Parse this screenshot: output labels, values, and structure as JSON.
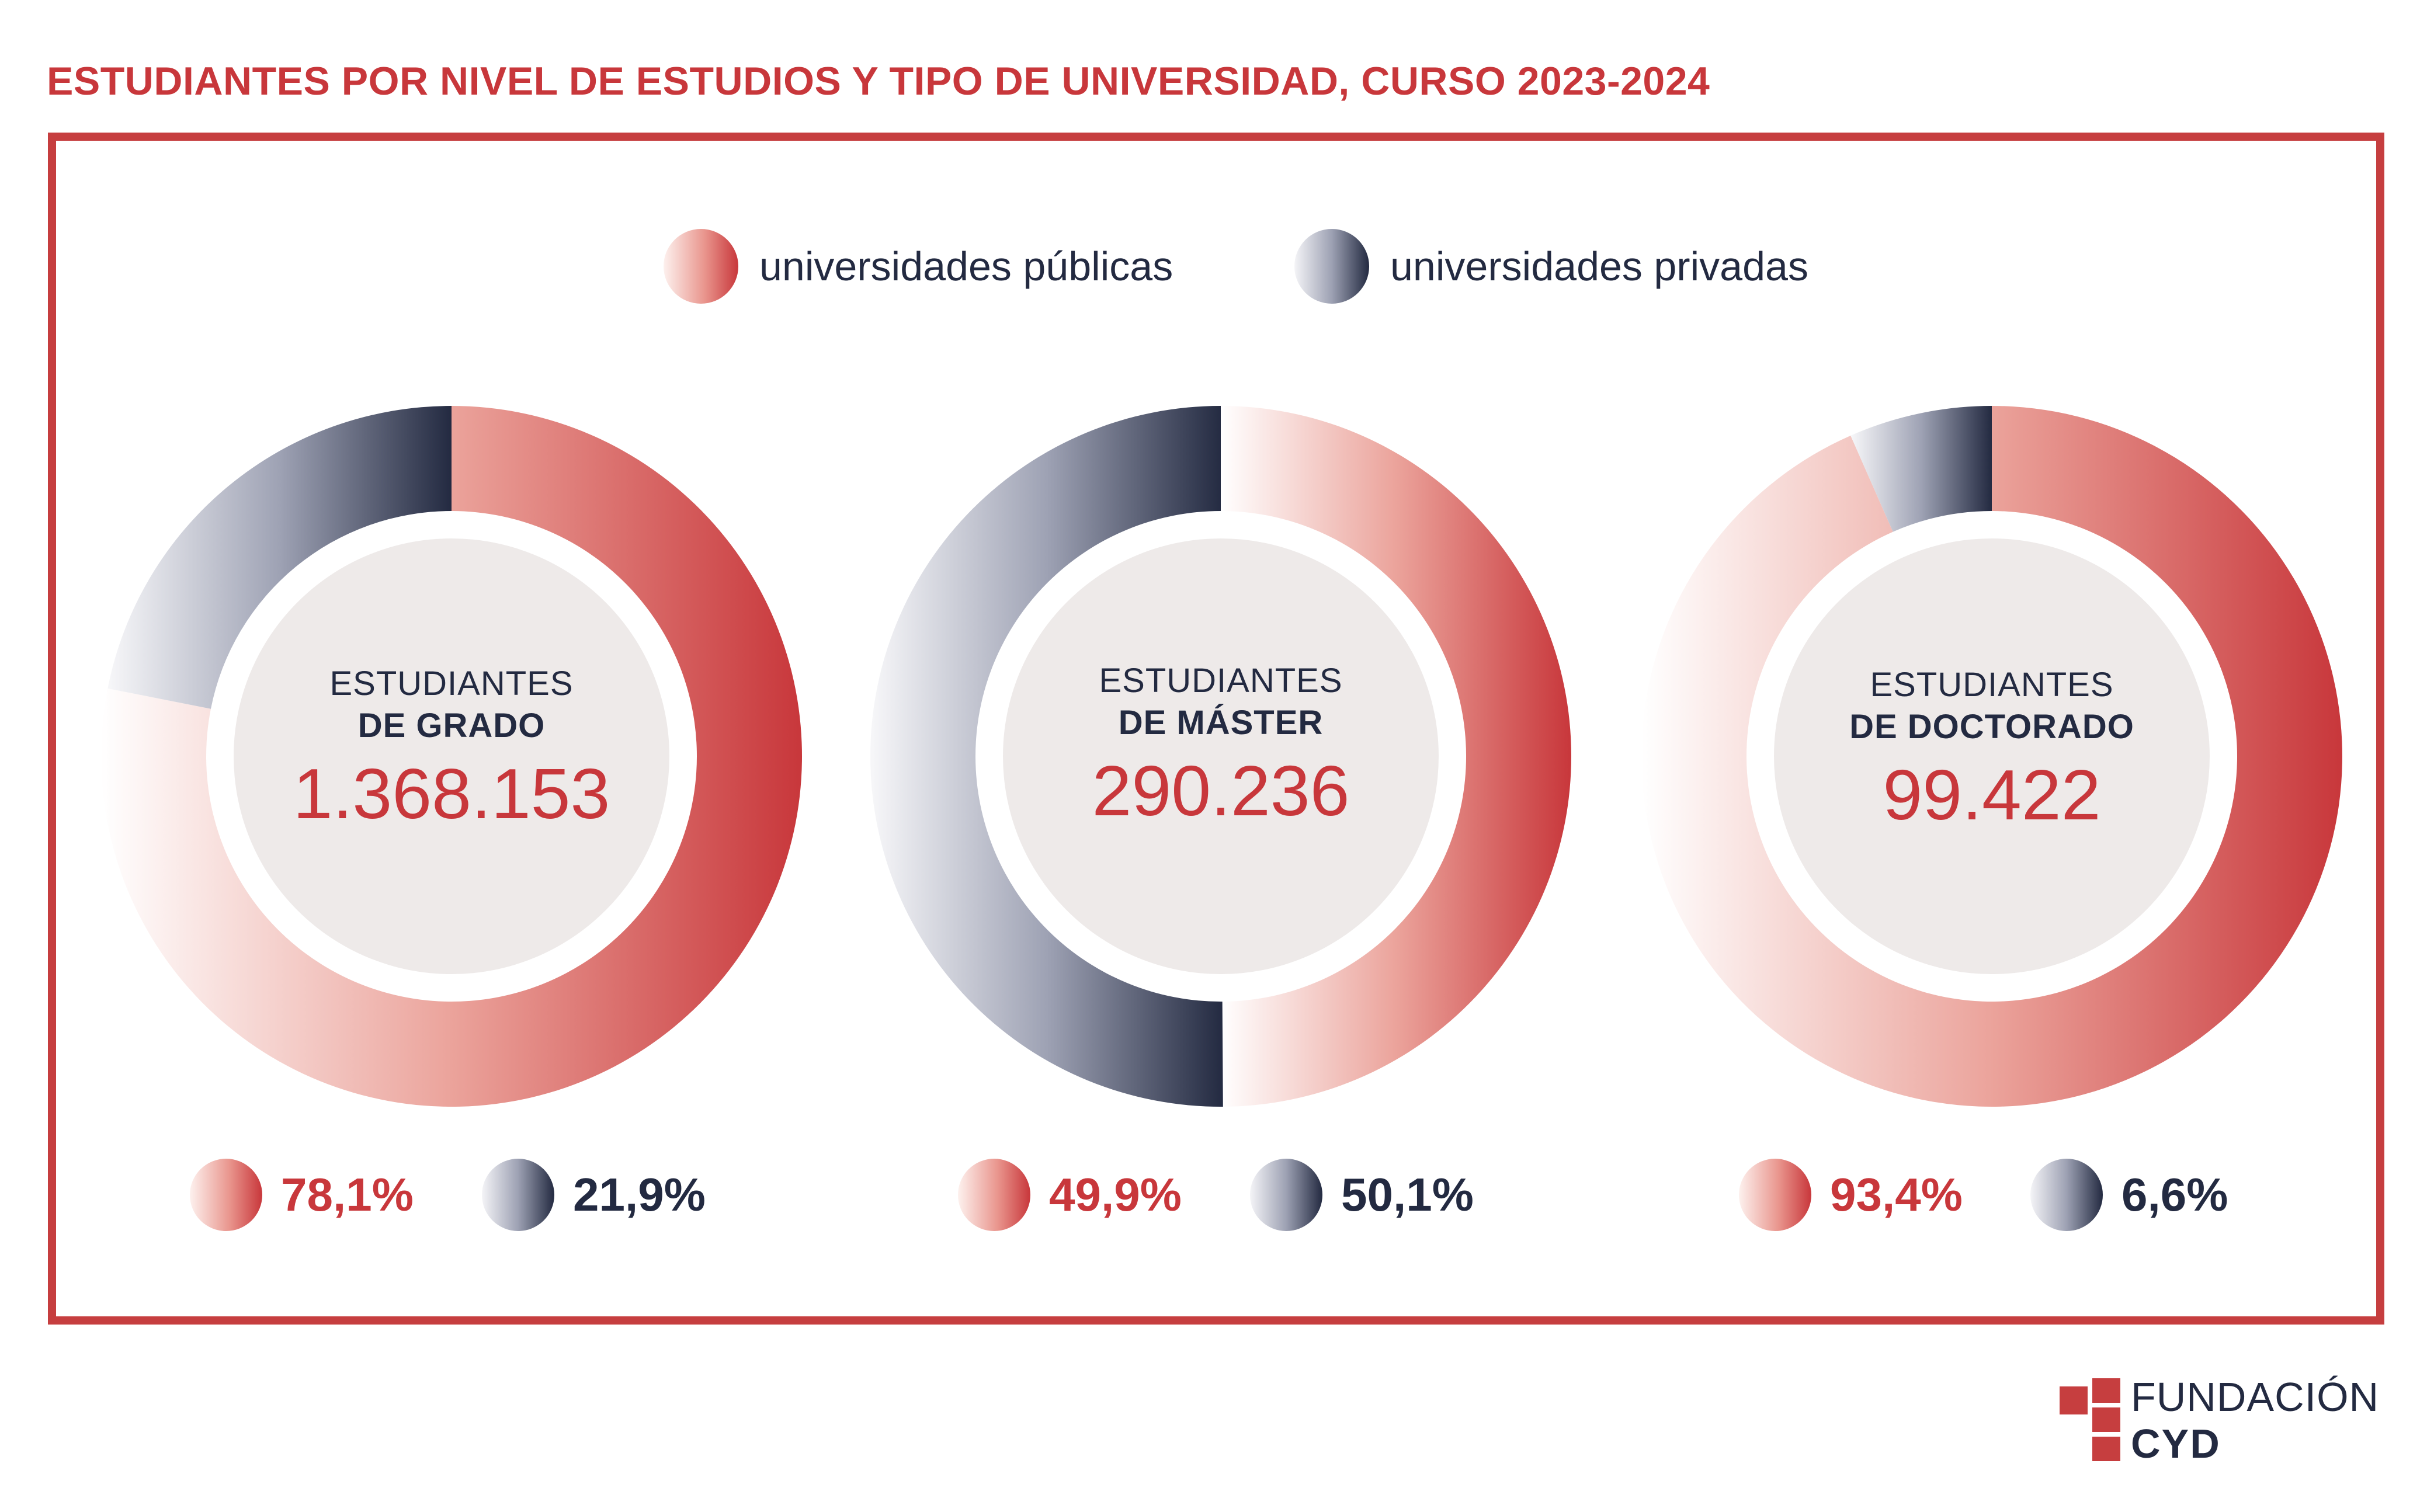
{
  "title": "ESTUDIANTES POR NIVEL DE ESTUDIOS Y TIPO DE UNIVERSIDAD, CURSO 2023-2024",
  "legend": {
    "public_label": "universidades públicas",
    "private_label": "universidades privadas"
  },
  "colors": {
    "public": "#c8373b",
    "public_light": "#fdf1ee",
    "private": "#232a41",
    "private_light": "#f4f4f7",
    "frame": "#c63e3f",
    "center_fill": "#eeeae9"
  },
  "chart_data": [
    {
      "type": "pie",
      "label_line1": "ESTUDIANTES",
      "label_line2": "DE GRADO",
      "total": "1.368.153",
      "series": [
        {
          "name": "universidades públicas",
          "value": 78.1,
          "label": "78,1%"
        },
        {
          "name": "universidades privadas",
          "value": 21.9,
          "label": "21,9%"
        }
      ]
    },
    {
      "type": "pie",
      "label_line1": "ESTUDIANTES",
      "label_line2": "DE MÁSTER",
      "total": "290.236",
      "series": [
        {
          "name": "universidades públicas",
          "value": 49.9,
          "label": "49,9%"
        },
        {
          "name": "universidades privadas",
          "value": 50.1,
          "label": "50,1%"
        }
      ]
    },
    {
      "type": "pie",
      "label_line1": "ESTUDIANTES",
      "label_line2": "DE DOCTORADO",
      "total": "99.422",
      "series": [
        {
          "name": "universidades públicas",
          "value": 93.4,
          "label": "93,4%"
        },
        {
          "name": "universidades privadas",
          "value": 6.6,
          "label": "6,6%"
        }
      ]
    }
  ],
  "logo": {
    "line1": "FUNDACIÓN",
    "line2": "CYD"
  }
}
